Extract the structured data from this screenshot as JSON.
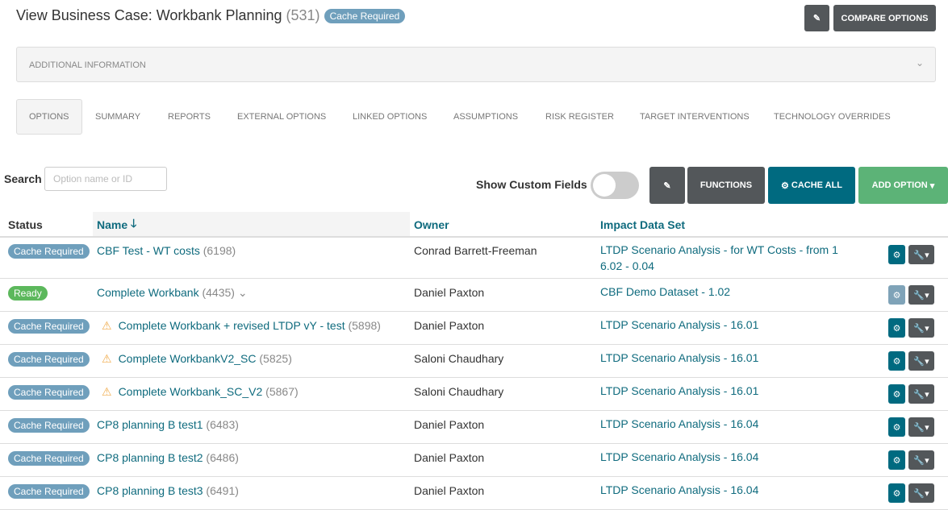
{
  "header": {
    "title": "View Business Case: Workbank Planning",
    "id": "(531)",
    "status": "Cache Required",
    "edit_icon": "pencil-icon",
    "compare_label": "COMPARE OPTIONS"
  },
  "additional_info": {
    "label": "ADDITIONAL INFORMATION",
    "icon": "chevron-down-icon"
  },
  "tabs": [
    "OPTIONS",
    "SUMMARY",
    "REPORTS",
    "EXTERNAL OPTIONS",
    "LINKED OPTIONS",
    "ASSUMPTIONS",
    "RISK REGISTER",
    "TARGET INTERVENTIONS",
    "TECHNOLOGY OVERRIDES"
  ],
  "toolbar": {
    "search_label": "Search",
    "search_placeholder": "Option name or ID",
    "search_value": "",
    "custom_fields_label": "Show Custom Fields",
    "custom_fields_on": false,
    "functions_label": "FUNCTIONS",
    "cache_all_label": "CACHE ALL",
    "add_option_label": "ADD OPTION"
  },
  "columns": {
    "status": "Status",
    "name": "Name",
    "owner": "Owner",
    "dataset": "Impact Data Set",
    "sort_icon": "arrow-down-icon"
  },
  "colors": {
    "teal": "#006a80",
    "dark": "#53575a",
    "green": "#5cb377",
    "badge": "#6f9fbc"
  },
  "rows": [
    {
      "status": "Cache Required",
      "warn": false,
      "name": "CBF Test - WT costs",
      "id": "(6198)",
      "owner": "Conrad Barrett-Freeman",
      "dataset": "LTDP Scenario Analysis - for WT Costs - from 1",
      "dataset2": "6.02 - 0.04"
    },
    {
      "status": "Ready",
      "warn": false,
      "name": "Complete Workbank",
      "id": "(4435)",
      "expand": "⌄",
      "owner": "Daniel Paxton",
      "dataset": "CBF Demo Dataset - 1.02"
    },
    {
      "status": "Cache Required",
      "warn": true,
      "name": "Complete Workbank + revised LTDP vY - test",
      "id": "(5898)",
      "owner": "Daniel Paxton",
      "dataset": "LTDP Scenario Analysis - 16.01"
    },
    {
      "status": "Cache Required",
      "warn": true,
      "name": "Complete WorkbankV2_SC",
      "id": "(5825)",
      "owner": "Saloni Chaudhary",
      "dataset": "LTDP Scenario Analysis - 16.01"
    },
    {
      "status": "Cache Required",
      "warn": true,
      "name": "Complete Workbank_SC_V2",
      "id": "(5867)",
      "owner": "Saloni Chaudhary",
      "dataset": "LTDP Scenario Analysis - 16.01"
    },
    {
      "status": "Cache Required",
      "warn": false,
      "name": "CP8 planning B test1",
      "id": "(6483)",
      "owner": "Daniel Paxton",
      "dataset": "LTDP Scenario Analysis - 16.04"
    },
    {
      "status": "Cache Required",
      "warn": false,
      "name": "CP8 planning B test2",
      "id": "(6486)",
      "owner": "Daniel Paxton",
      "dataset": "LTDP Scenario Analysis - 16.04"
    },
    {
      "status": "Cache Required",
      "warn": false,
      "name": "CP8 planning B test3",
      "id": "(6491)",
      "owner": "Daniel Paxton",
      "dataset": "LTDP Scenario Analysis - 16.04"
    }
  ]
}
